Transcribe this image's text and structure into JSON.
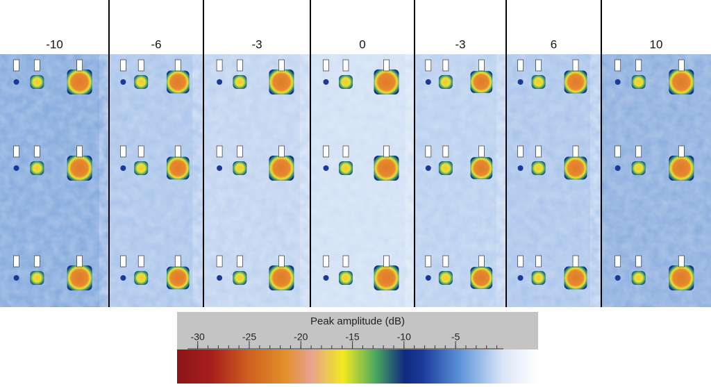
{
  "panels": [
    {
      "label": "-10",
      "color": "#7fa6dc"
    },
    {
      "label": "-6",
      "color": "#a6c2ea"
    },
    {
      "label": "-3",
      "color": "#bcd1ef"
    },
    {
      "label": "0",
      "color": "#cddef3"
    },
    {
      "label": "-3",
      "color": "#b5cdee"
    },
    {
      "label": "6",
      "color": "#a6c2ea"
    },
    {
      "label": "10",
      "color": "#86aadd"
    }
  ],
  "colorbar": {
    "title": "Peak amplitude (dB)",
    "lim": [
      -32,
      3
    ],
    "ticks": [
      -30,
      -25,
      -20,
      -15,
      -10,
      -5
    ]
  }
}
